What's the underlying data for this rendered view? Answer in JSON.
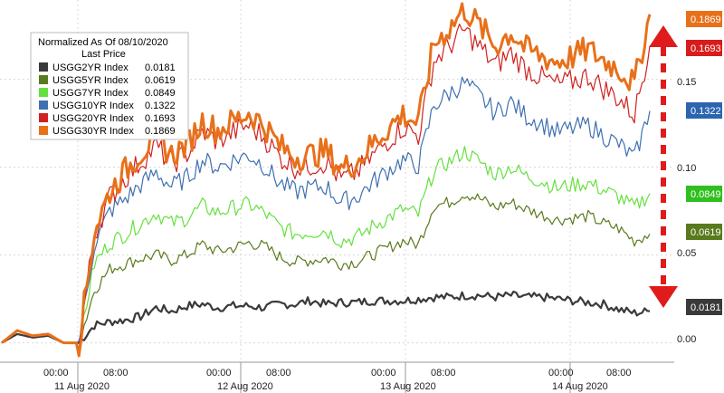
{
  "chart_data": {
    "type": "line",
    "legend": {
      "title_line1": "Normalized As Of 08/10/2020",
      "title_line2": "Last Price",
      "placement": "top-left"
    },
    "series": [
      {
        "name": "USGG2YR Index",
        "last": "0.0181",
        "color": "#3a3a3a",
        "badge_color": "#3a3a3a",
        "values": [
          0.0,
          0.005,
          0.003,
          0.004,
          0.0,
          0.0,
          0.01,
          0.012,
          0.013,
          0.015,
          0.02,
          0.018,
          0.021,
          0.022,
          0.02,
          0.021,
          0.021,
          0.02,
          0.022,
          0.022,
          0.024,
          0.022,
          0.023,
          0.023,
          0.024,
          0.024,
          0.024,
          0.025,
          0.026,
          0.026,
          0.027,
          0.027,
          0.026,
          0.027,
          0.026,
          0.026,
          0.025,
          0.024,
          0.023,
          0.022,
          0.019,
          0.017,
          0.018
        ]
      },
      {
        "name": "USGG5YR Index",
        "last": "0.0619",
        "color": "#5a7a1e",
        "badge_color": "#5a7a1e",
        "values": [
          0.0,
          0.007,
          0.004,
          0.005,
          0.0,
          0.0,
          0.03,
          0.042,
          0.045,
          0.048,
          0.05,
          0.047,
          0.05,
          0.056,
          0.052,
          0.054,
          0.057,
          0.055,
          0.049,
          0.046,
          0.047,
          0.048,
          0.045,
          0.046,
          0.05,
          0.054,
          0.058,
          0.056,
          0.078,
          0.08,
          0.085,
          0.082,
          0.077,
          0.08,
          0.076,
          0.073,
          0.07,
          0.071,
          0.072,
          0.068,
          0.065,
          0.058,
          0.062
        ]
      },
      {
        "name": "USGG7YR Index",
        "last": "0.0849",
        "color": "#66e040",
        "badge_color": "#2fbf1f",
        "values": [
          0.0,
          0.007,
          0.004,
          0.005,
          0.0,
          0.0,
          0.045,
          0.057,
          0.062,
          0.068,
          0.074,
          0.068,
          0.071,
          0.078,
          0.074,
          0.077,
          0.079,
          0.074,
          0.066,
          0.062,
          0.063,
          0.064,
          0.058,
          0.06,
          0.066,
          0.071,
          0.076,
          0.073,
          0.098,
          0.103,
          0.109,
          0.103,
          0.096,
          0.1,
          0.095,
          0.092,
          0.088,
          0.09,
          0.091,
          0.087,
          0.083,
          0.077,
          0.085
        ]
      },
      {
        "name": "USGG10YR Index",
        "last": "0.1322",
        "color": "#3f70b0",
        "badge_color": "#2b64b0",
        "values": [
          0.0,
          0.007,
          0.004,
          0.005,
          0.0,
          0.0,
          0.056,
          0.075,
          0.082,
          0.09,
          0.097,
          0.089,
          0.094,
          0.104,
          0.1,
          0.104,
          0.107,
          0.101,
          0.091,
          0.086,
          0.088,
          0.089,
          0.08,
          0.083,
          0.091,
          0.098,
          0.104,
          0.101,
          0.135,
          0.142,
          0.148,
          0.14,
          0.131,
          0.137,
          0.129,
          0.125,
          0.12,
          0.122,
          0.124,
          0.118,
          0.113,
          0.105,
          0.132
        ]
      },
      {
        "name": "USGG20YR Index",
        "last": "0.1693",
        "color": "#d12020",
        "badge_color": "#d81c1c",
        "values": [
          0.0,
          0.007,
          0.004,
          0.005,
          0.0,
          0.0,
          0.062,
          0.083,
          0.094,
          0.103,
          0.112,
          0.102,
          0.108,
          0.12,
          0.115,
          0.12,
          0.124,
          0.117,
          0.106,
          0.1,
          0.101,
          0.103,
          0.093,
          0.097,
          0.106,
          0.115,
          0.123,
          0.118,
          0.16,
          0.169,
          0.178,
          0.168,
          0.158,
          0.165,
          0.156,
          0.151,
          0.147,
          0.149,
          0.152,
          0.145,
          0.139,
          0.13,
          0.169
        ]
      },
      {
        "name": "USGG30YR Index",
        "last": "0.1869",
        "color": "#e8701a",
        "badge_color": "#e8701a",
        "values": [
          0.0,
          0.007,
          0.004,
          0.005,
          0.0,
          0.0,
          0.064,
          0.086,
          0.098,
          0.108,
          0.117,
          0.107,
          0.113,
          0.126,
          0.121,
          0.126,
          0.131,
          0.124,
          0.112,
          0.106,
          0.107,
          0.109,
          0.099,
          0.103,
          0.113,
          0.122,
          0.13,
          0.125,
          0.17,
          0.179,
          0.19,
          0.18,
          0.169,
          0.177,
          0.167,
          0.163,
          0.16,
          0.163,
          0.167,
          0.161,
          0.156,
          0.147,
          0.187
        ]
      }
    ],
    "y_ticks": [
      "0.15",
      "0.10",
      "0.05",
      "0.00"
    ],
    "y_tick_values": [
      0.15,
      0.1,
      0.05,
      0.0
    ],
    "ylim": [
      -0.01,
      0.19
    ],
    "x_time_labels": [
      "00:00",
      "08:00",
      "00:00",
      "08:00",
      "00:00",
      "08:00",
      "00:00",
      "08:00"
    ],
    "x_date_labels": [
      "11 Aug 2020",
      "12 Aug 2020",
      "13 Aug 2020",
      "14 Aug 2020"
    ],
    "grid": true
  }
}
